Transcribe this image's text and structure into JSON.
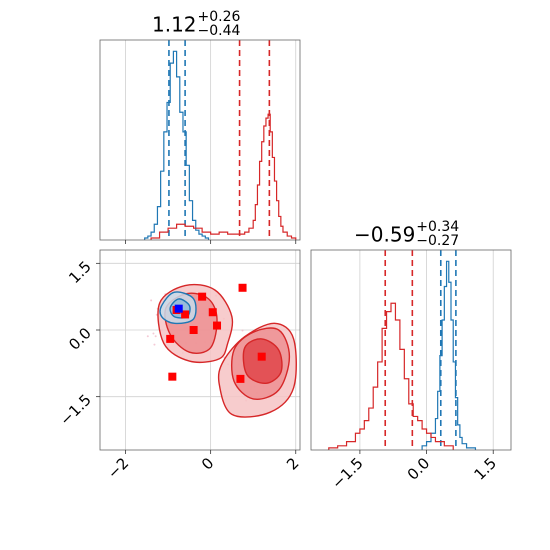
{
  "colors": {
    "red": "#d62728",
    "red_fill": "#f1a2a4",
    "red_fill_dark": "#e0454a",
    "blue": "#1f77b4",
    "blue_fill": "#a9c8e0",
    "red_marker": "#ff0000",
    "blue_marker": "#0000ff",
    "grid": "#d0d0d0",
    "axis": "#999999"
  },
  "titles": {
    "x_main": "1.12",
    "x_sup": "+0.26",
    "x_sub": "−0.44",
    "y_main": "−0.59",
    "y_sup": "+0.34",
    "y_sub": "−0.27"
  },
  "chart_data": [
    {
      "type": "histogram",
      "panel": "top-left",
      "xlim": [
        -2.6,
        2.1
      ],
      "x_ticks": [
        -2,
        0,
        2
      ],
      "grid": true,
      "series": [
        {
          "color": "#1f77b4",
          "bin_edges": [
            -1.55,
            -1.475,
            -1.4,
            -1.325,
            -1.25,
            -1.175,
            -1.1,
            -1.025,
            -0.95,
            -0.875,
            -0.8,
            -0.725,
            -0.65,
            -0.575,
            -0.5,
            -0.425,
            -0.35,
            -0.275,
            -0.2,
            -0.125,
            -0.05
          ],
          "values": [
            0.01,
            0.02,
            0.04,
            0.08,
            0.17,
            0.35,
            0.55,
            0.7,
            0.9,
            0.96,
            0.83,
            0.65,
            0.55,
            0.38,
            0.2,
            0.1,
            0.05,
            0.03,
            0.02,
            0.01
          ],
          "quantile_lines": [
            -0.98,
            -0.6
          ]
        },
        {
          "color": "#d62728",
          "bin_edges": [
            -1.4,
            -1.2,
            -1.0,
            -0.8,
            -0.6,
            -0.4,
            -0.2,
            0.0,
            0.2,
            0.4,
            0.6,
            0.8,
            0.9,
            1.0,
            1.05,
            1.1,
            1.15,
            1.2,
            1.25,
            1.3,
            1.35,
            1.4,
            1.45,
            1.5,
            1.55,
            1.6,
            1.65,
            1.7,
            1.8,
            1.9,
            2.0
          ],
          "values": [
            0.01,
            0.04,
            0.06,
            0.08,
            0.07,
            0.06,
            0.04,
            0.03,
            0.04,
            0.03,
            0.03,
            0.04,
            0.06,
            0.1,
            0.18,
            0.28,
            0.4,
            0.5,
            0.58,
            0.62,
            0.64,
            0.55,
            0.42,
            0.3,
            0.2,
            0.12,
            0.07,
            0.04,
            0.02,
            0.01
          ],
          "quantile_lines": [
            0.68,
            1.38
          ]
        }
      ]
    },
    {
      "type": "histogram",
      "panel": "bottom-right",
      "xlim": [
        -2.6,
        1.9
      ],
      "x_ticks": [
        -1.5,
        0.0,
        1.5
      ],
      "x_tick_labels": [
        "−1.5",
        "0.0",
        "1.5"
      ],
      "grid": true,
      "series": [
        {
          "color": "#1f77b4",
          "bin_edges": [
            -0.1,
            0.0,
            0.1,
            0.2,
            0.25,
            0.3,
            0.35,
            0.4,
            0.45,
            0.5,
            0.55,
            0.6,
            0.65,
            0.7,
            0.75,
            0.8,
            0.9,
            1.0,
            1.1
          ],
          "values": [
            0.02,
            0.04,
            0.08,
            0.15,
            0.28,
            0.45,
            0.62,
            0.78,
            0.9,
            0.8,
            0.62,
            0.42,
            0.25,
            0.12,
            0.06,
            0.03,
            0.01,
            0.01
          ],
          "quantile_lines": [
            0.32,
            0.66
          ]
        },
        {
          "color": "#d62728",
          "bin_edges": [
            -2.2,
            -2.0,
            -1.8,
            -1.6,
            -1.5,
            -1.4,
            -1.3,
            -1.2,
            -1.1,
            -1.0,
            -0.9,
            -0.8,
            -0.7,
            -0.6,
            -0.5,
            -0.4,
            -0.3,
            -0.2,
            -0.1,
            0.0,
            0.1,
            0.2,
            0.4,
            0.6
          ],
          "values": [
            0.01,
            0.02,
            0.04,
            0.08,
            0.1,
            0.14,
            0.2,
            0.3,
            0.42,
            0.58,
            0.66,
            0.7,
            0.62,
            0.48,
            0.34,
            0.22,
            0.16,
            0.14,
            0.1,
            0.08,
            0.06,
            0.04,
            0.02
          ],
          "quantile_lines": [
            -0.93,
            -0.32
          ]
        }
      ]
    },
    {
      "type": "scatter",
      "panel": "bottom-left",
      "xlim": [
        -2.6,
        2.1
      ],
      "ylim": [
        -2.7,
        1.8
      ],
      "x_ticks": [
        -2,
        0,
        2
      ],
      "x_tick_labels": [
        "−2",
        "0",
        "2"
      ],
      "y_ticks": [
        1.5,
        0.0,
        -1.5
      ],
      "y_tick_labels": [
        "1.5",
        "0.0",
        "−1.5"
      ],
      "grid": true,
      "series": [
        {
          "name": "",
          "color": "#ff0000",
          "marker": "square",
          "x": [
            -0.8,
            -0.2,
            -0.6,
            0.05,
            0.75,
            -0.4,
            0.15,
            -0.95,
            -0.9,
            0.7,
            1.2
          ],
          "y": [
            0.45,
            0.75,
            0.35,
            0.4,
            0.95,
            0.0,
            0.1,
            -0.2,
            -1.05,
            -1.1,
            -0.6
          ]
        },
        {
          "name": "",
          "color": "#0000ff",
          "marker": "square",
          "x": [
            -0.75
          ],
          "y": [
            0.48
          ]
        }
      ],
      "density_contours": [
        {
          "color": "#d62728",
          "levels": [
            {
              "fill": "#f6c3c4",
              "points": [
                [
                  -1.2,
                  0.6
                ],
                [
                  -0.6,
                  1.0
                ],
                [
                  0.1,
                  0.9
                ],
                [
                  0.5,
                  0.3
                ],
                [
                  0.4,
                  -0.3
                ],
                [
                  0.2,
                  -0.65
                ],
                [
                  -0.5,
                  -0.7
                ],
                [
                  -1.1,
                  -0.3
                ]
              ]
            },
            {
              "fill": "#f6c3c4",
              "points": [
                [
                  0.3,
                  -0.7
                ],
                [
                  0.8,
                  -0.15
                ],
                [
                  1.5,
                  0.15
                ],
                [
                  1.95,
                  -0.2
                ],
                [
                  1.95,
                  -1.3
                ],
                [
                  1.4,
                  -1.85
                ],
                [
                  0.5,
                  -1.9
                ],
                [
                  0.2,
                  -1.2
                ]
              ]
            },
            {
              "fill": "#ed8f92",
              "points": [
                [
                  -1.05,
                  0.5
                ],
                [
                  -0.55,
                  0.82
                ],
                [
                  -0.05,
                  0.7
                ],
                [
                  0.15,
                  0.25
                ],
                [
                  0.0,
                  -0.4
                ],
                [
                  -0.5,
                  -0.5
                ],
                [
                  -0.95,
                  -0.1
                ]
              ]
            },
            {
              "fill": "#ed8f92",
              "points": [
                [
                  0.55,
                  -0.45
                ],
                [
                  1.0,
                  -0.05
                ],
                [
                  1.6,
                  0.0
                ],
                [
                  1.85,
                  -0.6
                ],
                [
                  1.6,
                  -1.35
                ],
                [
                  1.0,
                  -1.55
                ],
                [
                  0.55,
                  -1.15
                ]
              ]
            },
            {
              "fill": "#e0454a",
              "points": [
                [
                  0.8,
                  -0.4
                ],
                [
                  1.2,
                  -0.2
                ],
                [
                  1.6,
                  -0.45
                ],
                [
                  1.65,
                  -0.95
                ],
                [
                  1.3,
                  -1.2
                ],
                [
                  0.85,
                  -1.0
                ]
              ]
            }
          ]
        },
        {
          "color": "#1f77b4",
          "levels": [
            {
              "fill": "#c7dbea",
              "points": [
                [
                  -1.15,
                  0.55
                ],
                [
                  -0.85,
                  0.85
                ],
                [
                  -0.4,
                  0.7
                ],
                [
                  -0.4,
                  0.25
                ],
                [
                  -0.85,
                  0.15
                ],
                [
                  -1.15,
                  0.3
                ]
              ]
            },
            {
              "fill": "#8db8d9",
              "points": [
                [
                  -0.95,
                  0.5
                ],
                [
                  -0.75,
                  0.7
                ],
                [
                  -0.5,
                  0.55
                ],
                [
                  -0.55,
                  0.3
                ],
                [
                  -0.85,
                  0.3
                ]
              ]
            }
          ]
        }
      ]
    }
  ]
}
